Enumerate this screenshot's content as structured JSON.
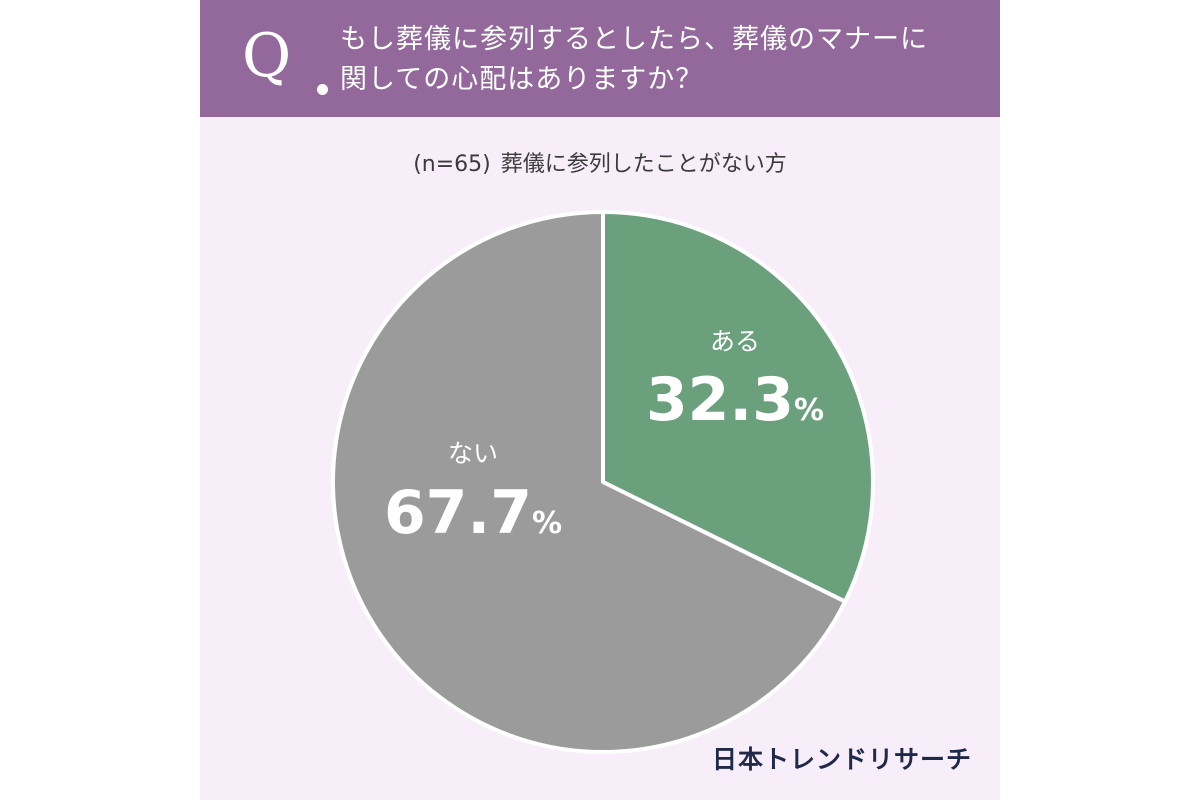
{
  "header": {
    "q_label": "Q",
    "question_line1": "もし葬儀に参列するとしたら、葬儀のマナーに",
    "question_line2": "関しての心配はありますか？"
  },
  "subtitle": {
    "n": "(n=65)",
    "text": "葬儀に参列したことがない方"
  },
  "brand": "日本トレンドリサーチ",
  "colors": {
    "header_bg": "#93699c",
    "card_bg": "#f8eefa",
    "slice_yes": "#6aa07c",
    "slice_no": "#9b9b9b"
  },
  "chart_data": {
    "type": "pie",
    "slices": [
      {
        "label": "ある",
        "value": 32.3,
        "display": "32.3",
        "unit": "%",
        "color": "#6aa07c"
      },
      {
        "label": "ない",
        "value": 67.7,
        "display": "67.7",
        "unit": "%",
        "color": "#9b9b9b"
      }
    ]
  }
}
